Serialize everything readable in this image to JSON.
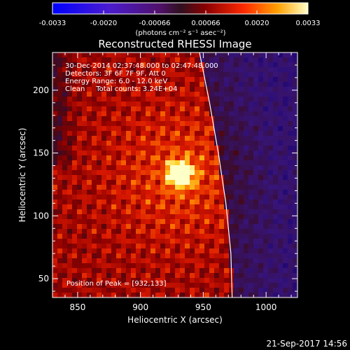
{
  "colorbar": {
    "ticks": [
      "-0.0033",
      "-0.0020",
      "-0.00066",
      "0.00066",
      "0.0020",
      "0.0033"
    ],
    "unit_label": "(photons cm⁻² s⁻¹ asec⁻²)"
  },
  "chart_data": {
    "type": "heatmap",
    "title": "Reconstructed RHESSI Image",
    "xlabel": "Heliocentric X (arcsec)",
    "ylabel": "Heliocentric Y (arcsec)",
    "xlim": [
      830,
      1025
    ],
    "ylim": [
      35,
      230
    ],
    "xticks": [
      850,
      900,
      950,
      1000
    ],
    "yticks": [
      50,
      100,
      150,
      200
    ],
    "colorbar_range": [
      -0.0033,
      0.0033
    ],
    "peak": {
      "x": 932,
      "y": 133
    },
    "limb_curve": [
      [
        947,
        230
      ],
      [
        955,
        190
      ],
      [
        962,
        150
      ],
      [
        968,
        110
      ],
      [
        972,
        70
      ],
      [
        973,
        35
      ]
    ],
    "info_lines": [
      "30-Dec-2014 02:37:48.000 to 02:47:48.000",
      "Detectors: 3F 6F 7F 9F, Att 0",
      "Energy Range: 6.0 - 12.0 keV",
      "Clean     Total counts: 3.24E+04"
    ],
    "peak_label": "Position of Peak = [932,133]"
  },
  "footer": {
    "timestamp": "21-Sep-2017 14:56"
  },
  "colors": {
    "background": "#000000",
    "text": "#ffffff",
    "limb": "#ffffff"
  }
}
